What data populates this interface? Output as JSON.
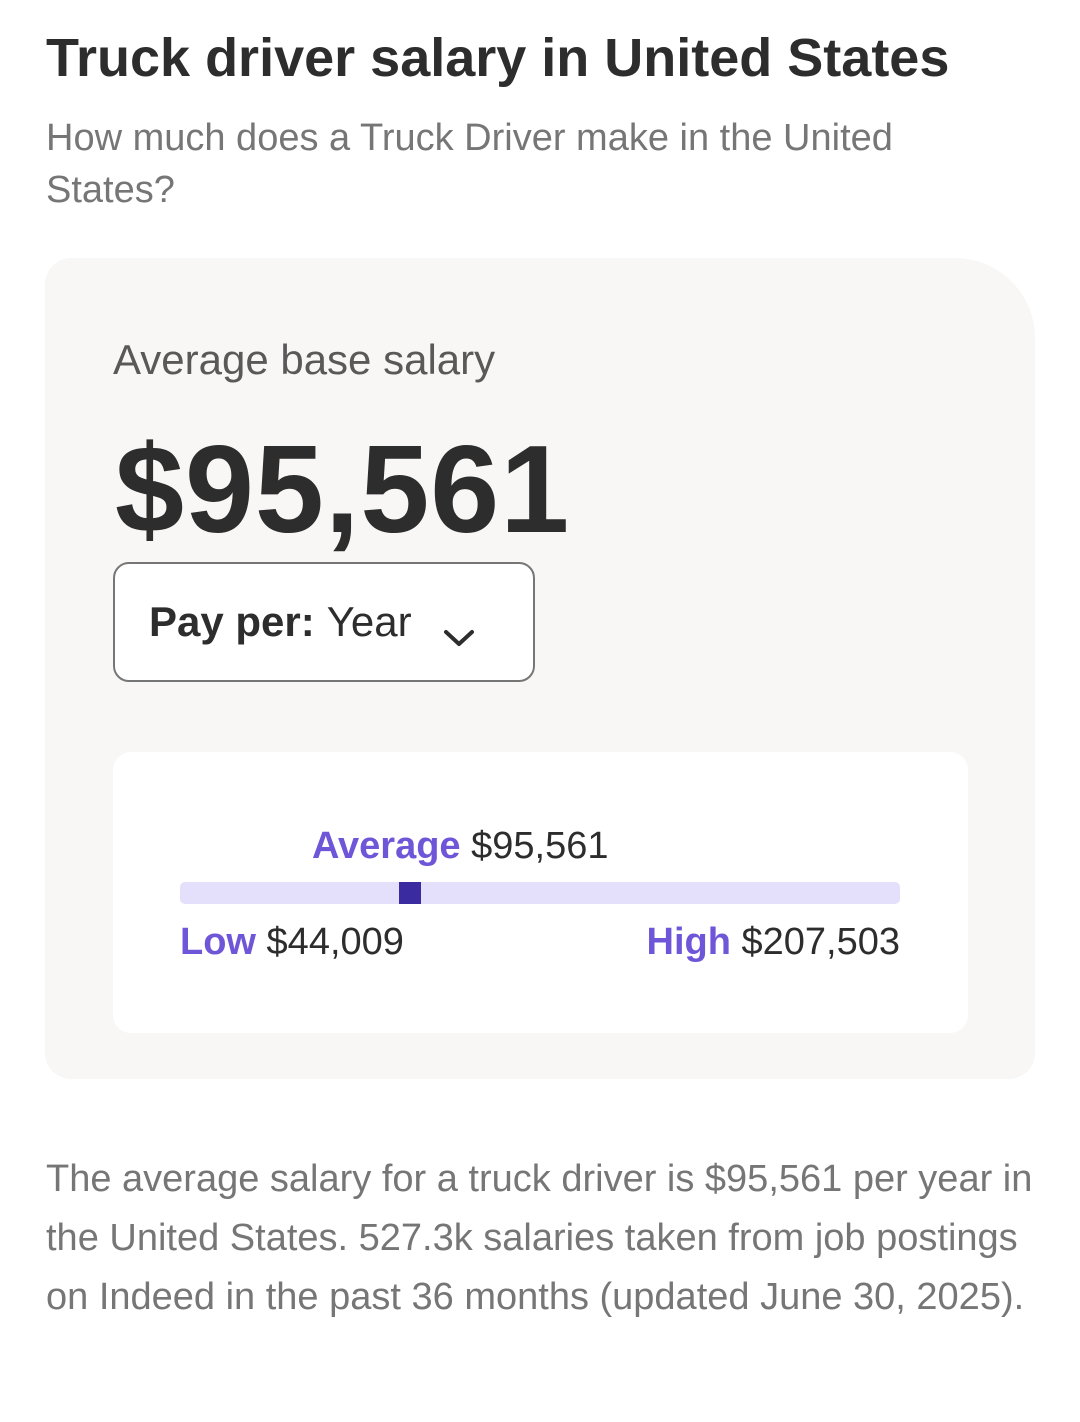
{
  "header": {
    "title": "Truck driver salary in United States",
    "subtitle": "How much does a Truck Driver make in the United States?"
  },
  "salary_card": {
    "average_label": "Average base salary",
    "average_value": "$95,561",
    "pay_per": {
      "label": "Pay per:",
      "selected": "Year",
      "icon": "chevron-down-icon"
    },
    "range": {
      "average_label": "Average",
      "average_value": "$95,561",
      "low_label": "Low",
      "low_value": "$44,009",
      "high_label": "High",
      "high_value": "$207,503",
      "marker_position_fraction": 0.32
    }
  },
  "summary": "The average salary for a truck driver is $95,561 per year in the United States.  527.3k salaries taken from job postings on Indeed in the past 36 months (updated June 30, 2025).",
  "colors": {
    "accent_purple": "#6f56d9",
    "marker": "#3b2ba0",
    "track": "#e4e0fb",
    "card_background": "#f8f7f6",
    "text_primary": "#2d2d2d",
    "text_secondary": "#767676"
  }
}
